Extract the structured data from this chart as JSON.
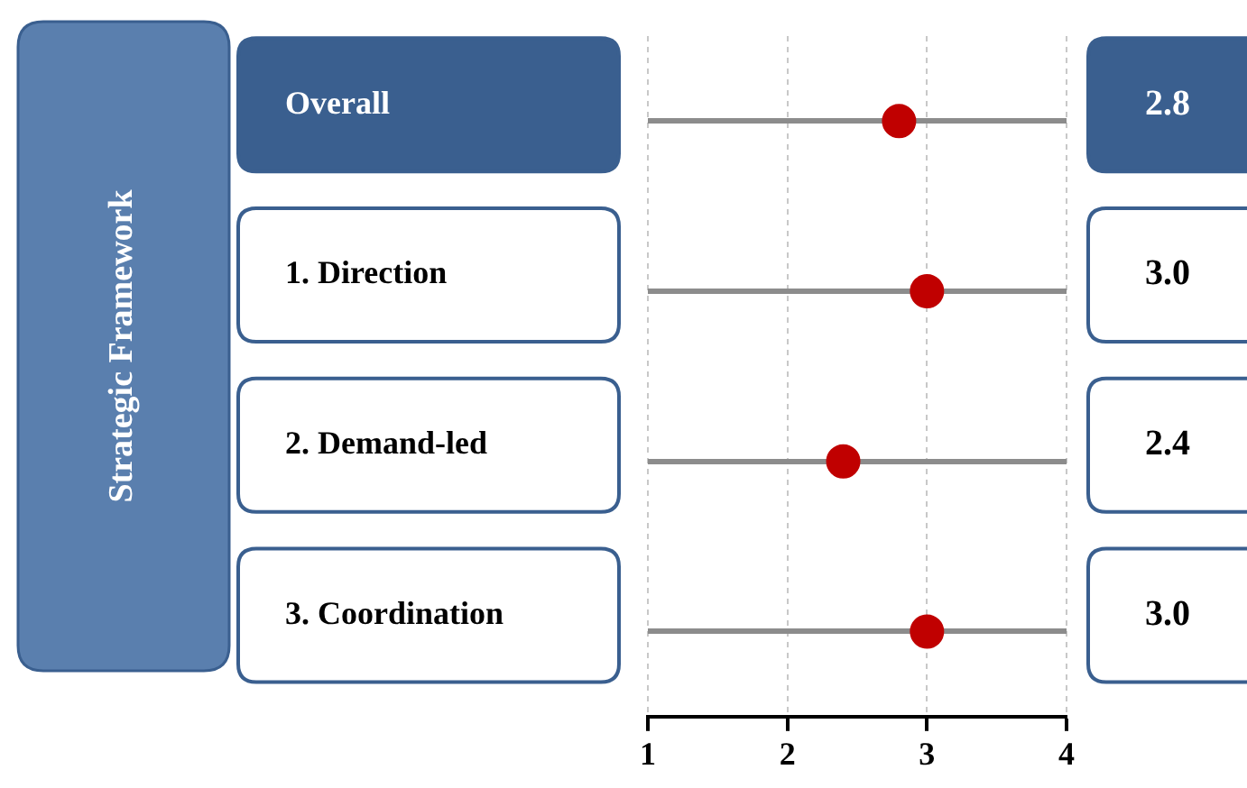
{
  "chart_data": {
    "type": "scatter",
    "orientation": "horizontal",
    "ylabel": "Strategic Framework",
    "categories": [
      "Overall",
      "1. Direction",
      "2. Demand-led",
      "3. Coordination"
    ],
    "values": [
      2.8,
      3.0,
      2.4,
      3.0
    ],
    "color": "#c00000",
    "marker": "circle",
    "value_labels": [
      "2.8",
      "3.0",
      "2.4",
      "3.0"
    ],
    "xlim": [
      1,
      4
    ],
    "xticks": [
      1,
      2,
      3,
      4
    ],
    "grid": true,
    "legend": false
  }
}
